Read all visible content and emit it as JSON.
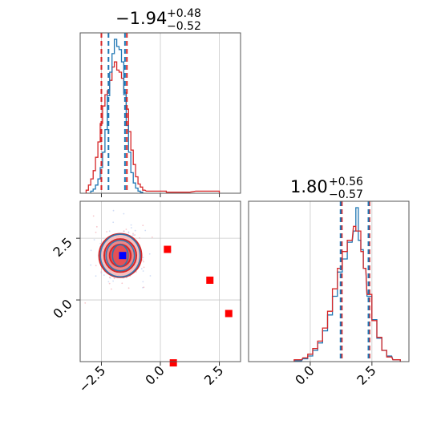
{
  "chart_data": {
    "type": "corner",
    "colors": {
      "blue": "#1f77b4",
      "red": "#d62728",
      "marker_blue": "#0000ff",
      "marker_red": "#ff0000",
      "grid": "#c8c8c8"
    },
    "parameters": [
      {
        "title_main": "−1.94",
        "title_sup": "+0.48",
        "title_sub": "−0.52"
      },
      {
        "title_main": "1.80",
        "title_sup": "+0.56",
        "title_sub": "−0.57"
      }
    ],
    "x_range_param1": [
      -3.4,
      3.4
    ],
    "x_range_param2": [
      -2.5,
      4.0
    ],
    "y_range_param2": [
      -2.5,
      4.0
    ],
    "param1_ticks": [
      -2.5,
      0.0,
      2.5
    ],
    "param1_tick_labels": [
      "−2.5",
      "0.0",
      "2.5"
    ],
    "param2_ticks": [
      0.0,
      2.5
    ],
    "param2_tick_labels": [
      "0.0",
      "2.5"
    ],
    "hist1_quantiles": {
      "blue": [
        -2.2,
        -1.5
      ],
      "red": [
        -2.5,
        -1.42
      ]
    },
    "hist2_quantiles": {
      "blue": [
        1.23,
        2.36
      ],
      "red": [
        1.28,
        2.4
      ]
    },
    "hist1_blue": {
      "x": [
        -2.9,
        -2.8,
        -2.7,
        -2.6,
        -2.5,
        -2.4,
        -2.3,
        -2.2,
        -2.1,
        -2.0,
        -1.9,
        -1.8,
        -1.7,
        -1.6,
        -1.5,
        -1.4,
        -1.3,
        -1.2,
        -1.1,
        -1.0,
        -0.9,
        -0.8
      ],
      "y": [
        2,
        4,
        8,
        14,
        25,
        40,
        62,
        95,
        118,
        136,
        150,
        143,
        140,
        128,
        96,
        66,
        40,
        20,
        10,
        5,
        2,
        1
      ]
    },
    "hist1_red": {
      "x": [
        -3.1,
        -3.0,
        -2.9,
        -2.8,
        -2.7,
        -2.6,
        -2.5,
        -2.4,
        -2.3,
        -2.2,
        -2.1,
        -2.0,
        -1.9,
        -1.8,
        -1.7,
        -1.6,
        -1.5,
        -1.4,
        -1.3,
        -1.2,
        -1.1,
        -1.0,
        -0.9,
        -0.8,
        -0.7,
        -0.5,
        0.0,
        0.5,
        1.0,
        2.0
      ],
      "y": [
        3,
        8,
        14,
        22,
        35,
        50,
        68,
        85,
        96,
        100,
        110,
        123,
        128,
        120,
        118,
        112,
        98,
        82,
        60,
        42,
        28,
        16,
        9,
        6,
        3,
        2,
        2,
        1,
        1,
        2
      ]
    },
    "hist2_blue": {
      "x": [
        -0.5,
        -0.2,
        0.0,
        0.2,
        0.4,
        0.6,
        0.8,
        1.0,
        1.2,
        1.4,
        1.6,
        1.8,
        1.9,
        2.0,
        2.1,
        2.2,
        2.4,
        2.6,
        2.8,
        3.0,
        3.2,
        3.5
      ],
      "y": [
        1,
        3,
        6,
        12,
        20,
        33,
        50,
        70,
        96,
        110,
        128,
        140,
        165,
        130,
        120,
        100,
        70,
        45,
        25,
        12,
        6,
        2
      ]
    },
    "hist2_red": {
      "x": [
        -0.5,
        -0.2,
        0.0,
        0.2,
        0.4,
        0.6,
        0.8,
        1.0,
        1.2,
        1.4,
        1.6,
        1.8,
        1.9,
        2.0,
        2.1,
        2.2,
        2.4,
        2.6,
        2.8,
        3.0,
        3.2,
        3.5
      ],
      "y": [
        2,
        4,
        8,
        14,
        22,
        36,
        54,
        78,
        100,
        118,
        130,
        145,
        140,
        140,
        118,
        100,
        72,
        44,
        26,
        12,
        5,
        2
      ]
    },
    "joint_center": [
      -1.7,
      1.8
    ],
    "joint_contours_red": [
      {
        "rx": 0.45,
        "ry": 0.45
      },
      {
        "rx": 0.68,
        "ry": 0.67
      },
      {
        "rx": 0.9,
        "ry": 0.88
      }
    ],
    "joint_contours_blue": [
      {
        "rx": 0.33,
        "ry": 0.44
      },
      {
        "rx": 0.6,
        "ry": 0.62
      },
      {
        "rx": 0.84,
        "ry": 0.86
      }
    ],
    "blue_marker": [
      -1.6,
      1.8
    ],
    "red_markers": [
      [
        0.3,
        2.05
      ],
      [
        2.1,
        0.8
      ],
      [
        2.9,
        -0.55
      ],
      [
        0.55,
        -2.55
      ]
    ]
  }
}
